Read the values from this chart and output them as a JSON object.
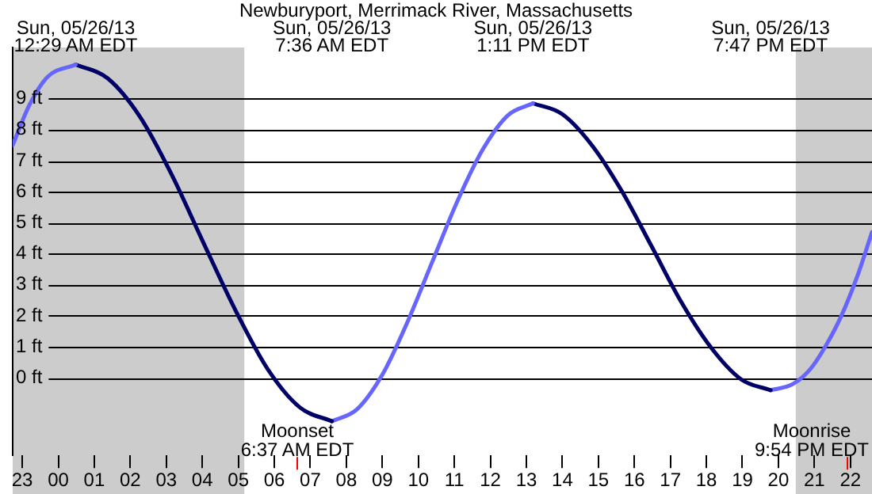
{
  "chart_data": {
    "type": "line",
    "title": "Newburyport, Merrimack River, Massachusetts",
    "marker": "none",
    "grid": "y",
    "legend": false,
    "xlim": [
      "--05-25T22:44",
      "--05-26T22:36"
    ],
    "xticks": [
      {
        "value": "--05-25T23:00",
        "label": "23"
      },
      {
        "value": "--05-26T00:00",
        "label": "00"
      },
      {
        "value": "--05-26T01:00",
        "label": "01"
      },
      {
        "value": "--05-26T02:00",
        "label": "02"
      },
      {
        "value": "--05-26T03:00",
        "label": "03"
      },
      {
        "value": "--05-26T04:00",
        "label": "04"
      },
      {
        "value": "--05-26T05:00",
        "label": "05"
      },
      {
        "value": "--05-26T06:00",
        "label": "06"
      },
      {
        "value": "--05-26T07:00",
        "label": "07"
      },
      {
        "value": "--05-26T08:00",
        "label": "08"
      },
      {
        "value": "--05-26T09:00",
        "label": "09"
      },
      {
        "value": "--05-26T10:00",
        "label": "10"
      },
      {
        "value": "--05-26T11:00",
        "label": "11"
      },
      {
        "value": "--05-26T12:00",
        "label": "12"
      },
      {
        "value": "--05-26T13:00",
        "label": "13"
      },
      {
        "value": "--05-26T14:00",
        "label": "14"
      },
      {
        "value": "--05-26T15:00",
        "label": "15"
      },
      {
        "value": "--05-26T16:00",
        "label": "16"
      },
      {
        "value": "--05-26T17:00",
        "label": "17"
      },
      {
        "value": "--05-26T18:00",
        "label": "18"
      },
      {
        "value": "--05-26T19:00",
        "label": "19"
      },
      {
        "value": "--05-26T20:00",
        "label": "20"
      },
      {
        "value": "--05-26T21:00",
        "label": "21"
      },
      {
        "value": "--05-26T22:00",
        "label": "22"
      }
    ],
    "ylim": [
      -2.5,
      10.65
    ],
    "yticks": [
      {
        "value": 0,
        "label": "0 ft"
      },
      {
        "value": 1,
        "label": "1 ft"
      },
      {
        "value": 2,
        "label": "2 ft"
      },
      {
        "value": 3,
        "label": "3 ft"
      },
      {
        "value": 4,
        "label": "4 ft"
      },
      {
        "value": 5,
        "label": "5 ft"
      },
      {
        "value": 6,
        "label": "6 ft"
      },
      {
        "value": 7,
        "label": "7 ft"
      },
      {
        "value": 8,
        "label": "8 ft"
      },
      {
        "value": 9,
        "label": "9 ft"
      }
    ],
    "bands": [
      {
        "axis": "x",
        "from": "--05-25T22:44",
        "to": "--05-26T05:10",
        "color": "#cccccc"
      },
      {
        "axis": "x",
        "from": "--05-26T20:29",
        "to": "--05-26T22:36",
        "color": "#cccccc"
      }
    ],
    "ref_lines": [
      {
        "axis": "x",
        "value": "--05-26T06:37",
        "label": "Moonset\n6:37 AM EDT",
        "color": "#ff0000"
      },
      {
        "axis": "x",
        "value": "--05-26T21:54",
        "label": "Moonrise\n9:54 PM EDT",
        "color": "#ff0000"
      }
    ],
    "annotations": [
      "Sun, 05/26/13\n12:29 AM EDT",
      "Sun, 05/26/13\n7:36 AM EDT",
      "Sun, 05/26/13\n1:11 PM EDT",
      "Sun, 05/26/13\n7:47 PM EDT"
    ],
    "series": [
      {
        "color": "#6666ff",
        "x": [
          "--05-25T22:44",
          "--05-25T23:12",
          "--05-25T23:42",
          "--05-26T00:29"
        ],
        "values": [
          7.5,
          8.8,
          9.7,
          10.1
        ]
      },
      {
        "color": "#000066",
        "x": [
          "--05-26T00:29",
          "--05-26T01:22",
          "--05-26T02:16",
          "--05-26T03:09",
          "--05-26T04:02",
          "--05-26T04:56",
          "--05-26T05:49",
          "--05-26T06:43",
          "--05-26T07:36"
        ],
        "values": [
          10.1,
          9.66,
          8.42,
          6.55,
          4.35,
          2.15,
          0.28,
          -0.96,
          -1.4
        ]
      },
      {
        "color": "#6666ff",
        "x": [
          "--05-26T07:36",
          "--05-26T08:18",
          "--05-26T09:00",
          "--05-26T09:41",
          "--05-26T10:23",
          "--05-26T11:05",
          "--05-26T11:47",
          "--05-26T12:29",
          "--05-26T13:11"
        ],
        "values": [
          -1.4,
          -1.01,
          0.1,
          1.76,
          3.73,
          5.69,
          7.35,
          8.46,
          8.85
        ]
      },
      {
        "color": "#000066",
        "x": [
          "--05-26T13:11",
          "--05-26T14:00",
          "--05-26T14:50",
          "--05-26T15:40",
          "--05-26T16:29",
          "--05-26T17:18",
          "--05-26T18:08",
          "--05-26T18:58",
          "--05-26T19:47"
        ],
        "values": [
          8.85,
          8.5,
          7.48,
          5.99,
          4.23,
          2.45,
          0.97,
          -0.05,
          -0.4
        ]
      },
      {
        "color": "#6666ff",
        "x": [
          "--05-26T19:47",
          "--05-26T20:24",
          "--05-26T20:54",
          "--05-26T21:18",
          "--05-26T21:45",
          "--05-26T22:12",
          "--05-26T22:36"
        ],
        "values": [
          -0.4,
          -0.2,
          0.3,
          1.0,
          2.0,
          3.3,
          4.7
        ]
      }
    ]
  }
}
